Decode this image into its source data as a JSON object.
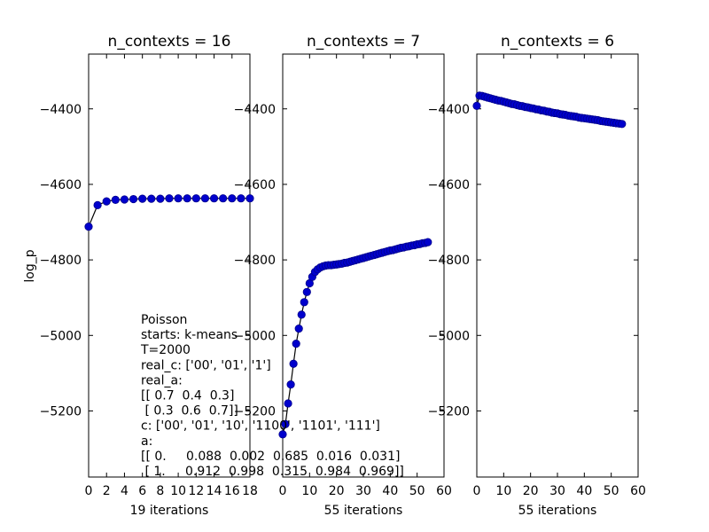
{
  "chart_data": [
    {
      "type": "line",
      "title": "n_contexts = 16",
      "xlabel": "19 iterations",
      "ylabel": "log_p",
      "xlim": [
        0,
        18
      ],
      "ylim": [
        -5375,
        -4255
      ],
      "xticks": [
        "0",
        "2",
        "4",
        "6",
        "8",
        "10",
        "12",
        "14",
        "16",
        "18"
      ],
      "yticks": [
        "-4400",
        "-4600",
        "-4800",
        "-5000",
        "-5200"
      ],
      "marker_color": "#0000cd",
      "line_color": "#000000",
      "series": [
        {
          "x": [
            0,
            1,
            2,
            3,
            4,
            5,
            6,
            7,
            8,
            9,
            10,
            11,
            12,
            13,
            14,
            15,
            16,
            17,
            18
          ],
          "y": [
            -4712,
            -4655,
            -4645,
            -4641,
            -4640,
            -4639,
            -4638,
            -4638,
            -4638,
            -4637,
            -4637,
            -4637,
            -4637,
            -4637,
            -4637,
            -4637,
            -4637,
            -4637,
            -4637
          ]
        }
      ]
    },
    {
      "type": "line",
      "title": "n_contexts = 7",
      "xlabel": "55 iterations",
      "ylabel": "",
      "xlim": [
        0,
        60
      ],
      "ylim": [
        -5375,
        -4255
      ],
      "xticks": [
        "0",
        "10",
        "20",
        "30",
        "40",
        "50",
        "60"
      ],
      "yticks": [
        "-4400",
        "-4600",
        "-4800",
        "-5000",
        "-5200"
      ],
      "marker_color": "#0000cd",
      "line_color": "#000000",
      "series": [
        {
          "x": [
            0,
            1,
            2,
            3,
            4,
            5,
            6,
            7,
            8,
            9,
            10,
            11,
            12,
            13,
            14,
            15,
            16,
            17,
            18,
            19,
            20,
            21,
            22,
            23,
            24,
            25,
            26,
            27,
            28,
            29,
            30,
            31,
            32,
            33,
            34,
            35,
            36,
            37,
            38,
            39,
            40,
            41,
            42,
            43,
            44,
            45,
            46,
            47,
            48,
            49,
            50,
            51,
            52,
            53,
            54
          ],
          "y": [
            -5262,
            -5235,
            -5180,
            -5130,
            -5075,
            -5022,
            -4982,
            -4945,
            -4912,
            -4885,
            -4862,
            -4845,
            -4832,
            -4825,
            -4820,
            -4817,
            -4815,
            -4814,
            -4814,
            -4813,
            -4812,
            -4811,
            -4810,
            -4808,
            -4807,
            -4805,
            -4803,
            -4801,
            -4799,
            -4797,
            -4795,
            -4793,
            -4791,
            -4789,
            -4787,
            -4785,
            -4783,
            -4781,
            -4779,
            -4777,
            -4775,
            -4774,
            -4772,
            -4770,
            -4768,
            -4767,
            -4765,
            -4764,
            -4762,
            -4761,
            -4759,
            -4758,
            -4756,
            -4755,
            -4753
          ]
        }
      ]
    },
    {
      "type": "line",
      "title": "n_contexts = 6",
      "xlabel": "55 iterations",
      "ylabel": "",
      "xlim": [
        0,
        60
      ],
      "ylim": [
        -5375,
        -4255
      ],
      "xticks": [
        "0",
        "10",
        "20",
        "30",
        "40",
        "50",
        "60"
      ],
      "yticks": [
        "-4400",
        "-4600",
        "-4800",
        "-5000",
        "-5200"
      ],
      "marker_color": "#0000cd",
      "line_color": "#000000",
      "series": [
        {
          "x": [
            0,
            1,
            2,
            3,
            4,
            5,
            6,
            7,
            8,
            9,
            10,
            11,
            12,
            13,
            14,
            15,
            16,
            17,
            18,
            19,
            20,
            21,
            22,
            23,
            24,
            25,
            26,
            27,
            28,
            29,
            30,
            31,
            32,
            33,
            34,
            35,
            36,
            37,
            38,
            39,
            40,
            41,
            42,
            43,
            44,
            45,
            46,
            47,
            48,
            49,
            50,
            51,
            52,
            53,
            54
          ],
          "y": [
            -4392,
            -4365,
            -4366,
            -4368,
            -4370,
            -4372,
            -4374,
            -4376,
            -4378,
            -4379,
            -4381,
            -4383,
            -4385,
            -4387,
            -4388,
            -4390,
            -4392,
            -4393,
            -4395,
            -4396,
            -4398,
            -4399,
            -4401,
            -4402,
            -4404,
            -4405,
            -4407,
            -4408,
            -4410,
            -4411,
            -4412,
            -4414,
            -4415,
            -4416,
            -4418,
            -4419,
            -4420,
            -4421,
            -4423,
            -4424,
            -4425,
            -4426,
            -4427,
            -4428,
            -4429,
            -4430,
            -4432,
            -4433,
            -4434,
            -4435,
            -4436,
            -4437,
            -4438,
            -4439,
            -4440
          ]
        }
      ]
    }
  ],
  "annotation_lines": [
    "Poisson",
    "starts: k-means",
    "T=2000",
    "real_c: ['00', '01', '1']",
    "real_a:",
    "[[ 0.7  0.4  0.3]",
    " [ 0.3  0.6  0.7]]",
    "c: ['00', '01', '10', '1100', '1101', '111']",
    "a:",
    "[[ 0.     0.088  0.002  0.685  0.016  0.031]",
    " [ 1.     0.912  0.998  0.315  0.984  0.969]]"
  ]
}
